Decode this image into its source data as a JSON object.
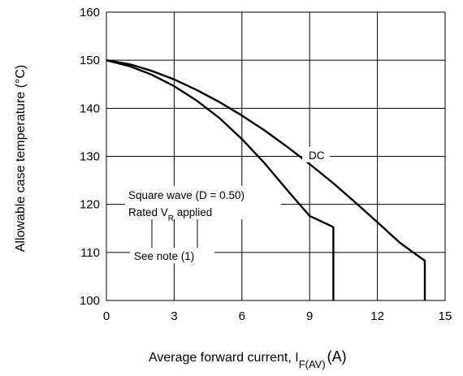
{
  "chart_data": {
    "type": "line",
    "title": "",
    "xlabel": {
      "main": "Average forward current, I",
      "sub": "F(AV)",
      "unit": "(A)"
    },
    "ylabel": "Allowable case temperature (°C)",
    "xlim": [
      0,
      15
    ],
    "ylim": [
      100,
      160
    ],
    "xticks": [
      0,
      3,
      6,
      9,
      12,
      15
    ],
    "yticks": [
      100,
      110,
      120,
      130,
      140,
      150,
      160
    ],
    "grid": true,
    "series": [
      {
        "name": "DC",
        "x": [
          0,
          1,
          2,
          3,
          4,
          5,
          6,
          7,
          8,
          9,
          10,
          11,
          12,
          13,
          14,
          14.1,
          14.1
        ],
        "y": [
          150,
          149.2,
          147.8,
          146,
          143.8,
          141.3,
          138.5,
          135.4,
          132,
          128.4,
          124.6,
          120.5,
          116.3,
          112,
          108.6,
          108.3,
          100
        ]
      },
      {
        "name": "Square wave (D = 0.50)",
        "x": [
          0,
          1,
          2,
          3,
          4,
          5,
          6,
          7,
          8,
          9,
          10,
          10.05,
          10.05
        ],
        "y": [
          150,
          148.8,
          147,
          144.6,
          141.6,
          138,
          133.6,
          128.6,
          123,
          117.6,
          115.4,
          115.2,
          100
        ]
      }
    ],
    "annotations": {
      "dc": "DC",
      "square_wave": "Square wave (D = 0.50)",
      "rated_prefix": "Rated V",
      "rated_sub": "R",
      "rated_suffix": " applied",
      "see_note": "See note (1)"
    }
  }
}
